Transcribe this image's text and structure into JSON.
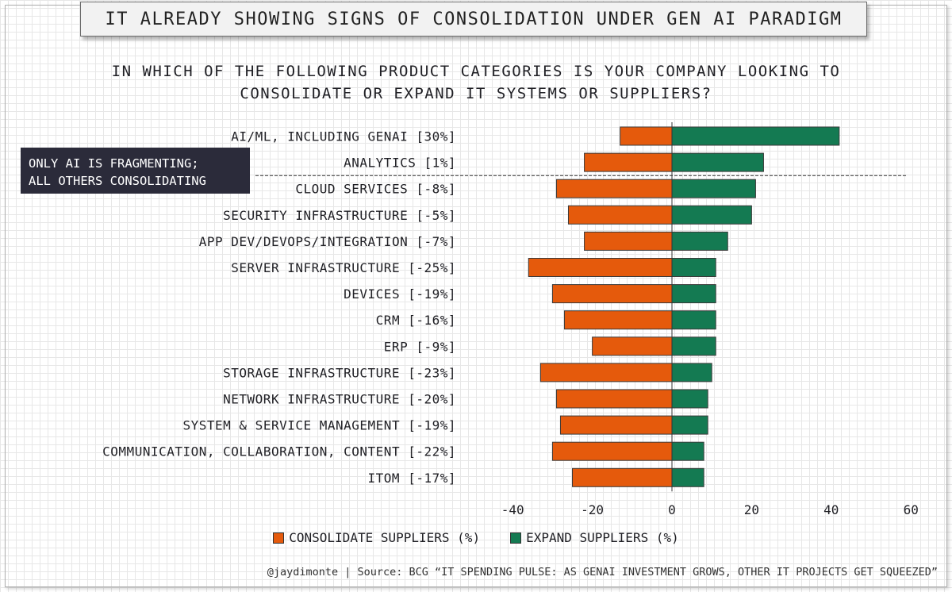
{
  "title": "IT ALREADY SHOWING SIGNS OF CONSOLIDATION UNDER GEN AI PARADIGM",
  "subtitle_lines": [
    "IN WHICH OF THE FOLLOWING PRODUCT CATEGORIES IS YOUR COMPANY LOOKING TO",
    "CONSOLIDATE OR EXPAND IT SYSTEMS OR SUPPLIERS?"
  ],
  "annotation_lines": [
    "ONLY AI IS FRAGMENTING;",
    "ALL OTHERS CONSOLIDATING"
  ],
  "footer": "@jaydimonte | Source: BCG “IT SPENDING PULSE: AS GENAI INVESTMENT GROWS, OTHER IT PROJECTS GET SQUEEZED”",
  "colors": {
    "consolidate": "#e55a0c",
    "expand": "#147a52",
    "bar_border": "#3a3a3a"
  },
  "chart_data": {
    "type": "bar",
    "orientation": "horizontal-diverging",
    "categories": [
      "AI/ML, INCLUDING GENAI [30%]",
      "ANALYTICS [1%]",
      "CLOUD SERVICES [-8%]",
      "SECURITY INFRASTRUCTURE [-5%]",
      "APP DEV/DEVOPS/INTEGRATION [-7%]",
      "SERVER INFRASTRUCTURE [-25%]",
      "DEVICES [-19%]",
      "CRM [-16%]",
      "ERP [-9%]",
      "STORAGE INFRASTRUCTURE [-23%]",
      "NETWORK INFRASTRUCTURE [-20%]",
      "SYSTEM & SERVICE MANAGEMENT [-19%]",
      "COMMUNICATION, COLLABORATION, CONTENT [-22%]",
      "ITOM [-17%]"
    ],
    "series": [
      {
        "name": "CONSOLIDATE SUPPLIERS (%)",
        "values": [
          -13,
          -22,
          -29,
          -26,
          -22,
          -36,
          -30,
          -27,
          -20,
          -33,
          -29,
          -28,
          -30,
          -25
        ]
      },
      {
        "name": "EXPAND SUPPLIERS (%)",
        "values": [
          42,
          23,
          21,
          20,
          14,
          11,
          11,
          11,
          11,
          10,
          9,
          9,
          8,
          8
        ]
      }
    ],
    "xlim": [
      -40,
      60
    ],
    "xticks": [
      -40,
      -20,
      0,
      20,
      40,
      60
    ],
    "legend": "bottom-center",
    "divider_after_index": 1
  }
}
